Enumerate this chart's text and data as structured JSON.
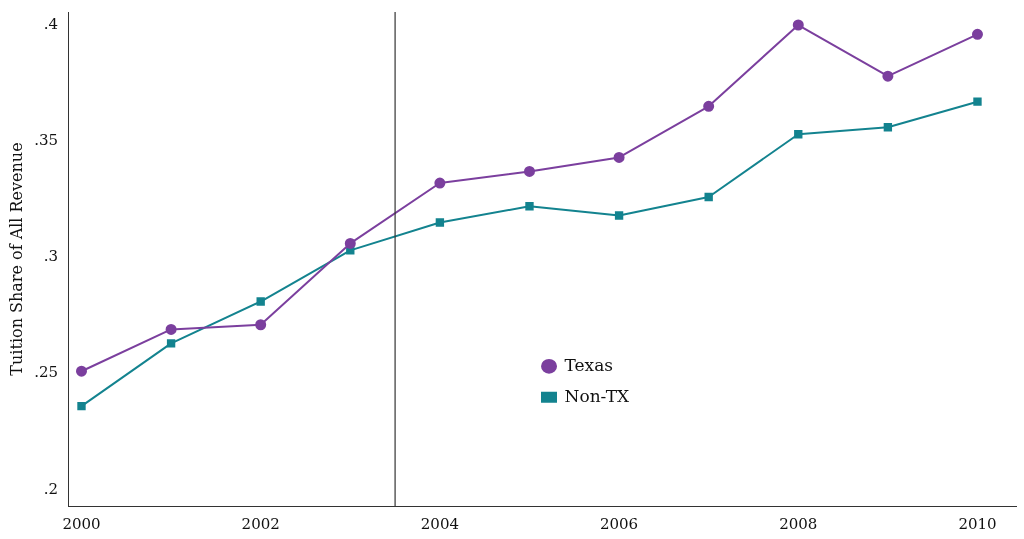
{
  "chart_data": {
    "type": "line",
    "ylabel": "Tuition Share of All Revenue",
    "x": [
      2000,
      2001,
      2002,
      2003,
      2004,
      2005,
      2006,
      2007,
      2008,
      2009,
      2010
    ],
    "series": [
      {
        "name": "Texas",
        "color": "#7b3f9e",
        "marker": "circle",
        "values": [
          0.251,
          0.269,
          0.271,
          0.306,
          0.332,
          0.337,
          0.343,
          0.365,
          0.4,
          0.378,
          0.396
        ]
      },
      {
        "name": "Non-TX",
        "color": "#13838f",
        "marker": "square",
        "values": [
          0.236,
          0.263,
          0.281,
          0.303,
          0.315,
          0.322,
          0.318,
          0.326,
          0.353,
          0.356,
          0.367
        ]
      }
    ],
    "xlim": [
      1999.85,
      2010.43
    ],
    "xticks": [
      2000,
      2002,
      2004,
      2006,
      2008,
      2010
    ],
    "ylim": [
      0.193,
      0.4056
    ],
    "yticks": [
      {
        "value": 0.2,
        "label": ".2"
      },
      {
        "value": 0.25,
        "label": ".25"
      },
      {
        "value": 0.3,
        "label": ".3"
      },
      {
        "value": 0.35,
        "label": ".35"
      },
      {
        "value": 0.4,
        "label": ".4"
      }
    ],
    "ref_lines": [
      {
        "axis": "x",
        "value": 2003.5,
        "color": "#333333",
        "line_style": "solid"
      }
    ],
    "grid": false,
    "legend": "bottom",
    "line_style": "solid"
  }
}
